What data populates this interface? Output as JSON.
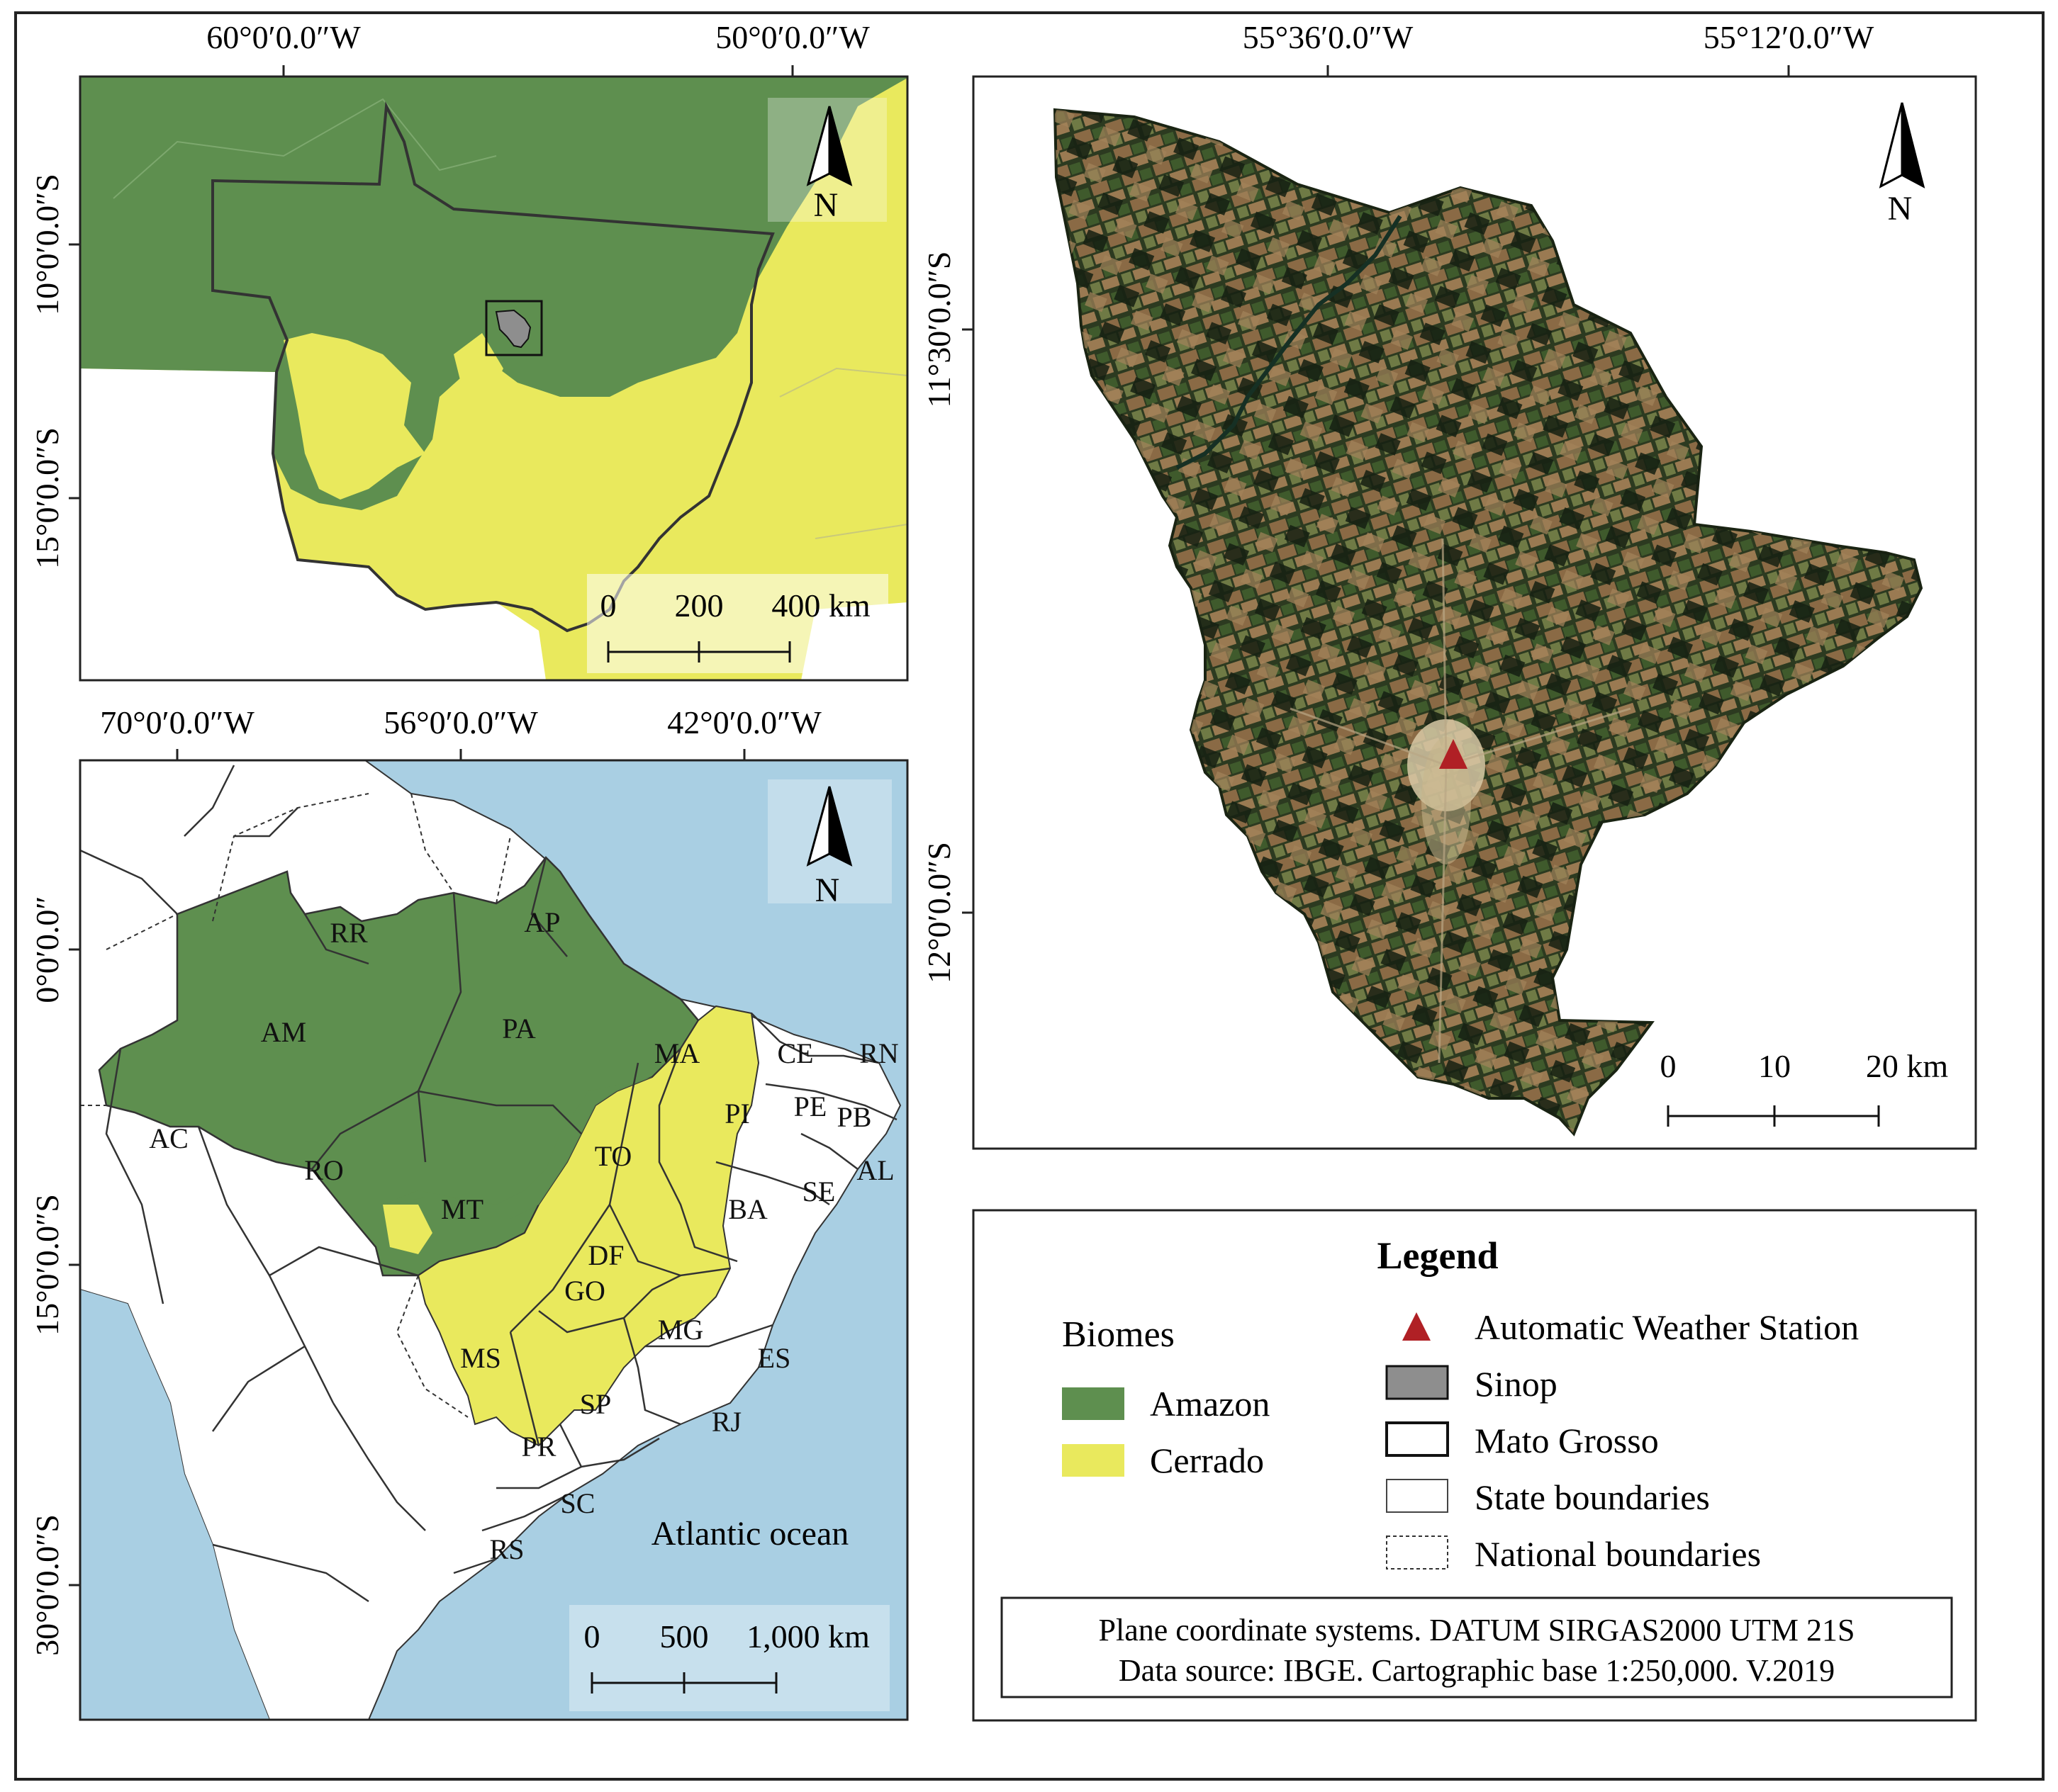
{
  "coords": {
    "top_left": {
      "top_ticks": [
        "60°0′0.0″W",
        "50°0′0.0″W"
      ],
      "left_ticks": [
        "10°0′0.0″S",
        "15°0′0.0″S"
      ]
    },
    "bottom_left": {
      "top_ticks": [
        "70°0′0.0″W",
        "56°0′0.0″W",
        "42°0′0.0″W"
      ],
      "left_ticks": [
        "0°0′0.0″",
        "15°0′0.0″S",
        "30°0′0.0″S"
      ]
    },
    "right": {
      "top_ticks": [
        "55°36′0.0″W",
        "55°12′0.0″W"
      ],
      "left_ticks": [
        "11°30′0.0″S",
        "12°0′0.0″S"
      ]
    }
  },
  "north_label": "N",
  "scalebars": {
    "top_left": [
      "0",
      "200",
      "400 km"
    ],
    "bottom_left": [
      "0",
      "500",
      "1,000 km"
    ],
    "right": [
      "0",
      "10",
      "20 km"
    ]
  },
  "map_labels": {
    "states": [
      "RR",
      "AP",
      "AM",
      "PA",
      "MA",
      "CE",
      "RN",
      "PI",
      "PE",
      "PB",
      "AC",
      "RO",
      "TO",
      "AL",
      "SE",
      "MT",
      "BA",
      "DF",
      "GO",
      "MG",
      "ES",
      "MS",
      "SP",
      "RJ",
      "PR",
      "SC",
      "RS"
    ],
    "ocean": "Atlantic ocean"
  },
  "legend": {
    "title": "Legend",
    "biomes_title": "Biomes",
    "biomes": [
      {
        "label": "Amazon",
        "color": "#5e8f4f"
      },
      {
        "label": "Cerrado",
        "color": "#e9e95d"
      }
    ],
    "items": [
      {
        "label": "Automatic Weather Station",
        "symbol": "red-triangle",
        "color": "#b02025"
      },
      {
        "label": "Sinop",
        "symbol": "gray-fill",
        "color": "#8e8e8e"
      },
      {
        "label": "Mato Grosso",
        "symbol": "black-outline"
      },
      {
        "label": "State boundaries",
        "symbol": "thin-outline"
      },
      {
        "label": "National boundaries",
        "symbol": "dotted-outline"
      }
    ],
    "note_lines": [
      "Plane coordinate systems. DATUM SIRGAS2000 UTM 21S",
      "Data source: IBGE. Cartographic base 1:250,000. V.2019"
    ]
  },
  "colors": {
    "amazon": "#5e8f4f",
    "cerrado": "#e9e95d",
    "ocean": "#a9cfe3",
    "land_white": "#ffffff",
    "station": "#b02025",
    "sinop": "#8e8e8e",
    "satellite_dark": "#1f2a17"
  }
}
